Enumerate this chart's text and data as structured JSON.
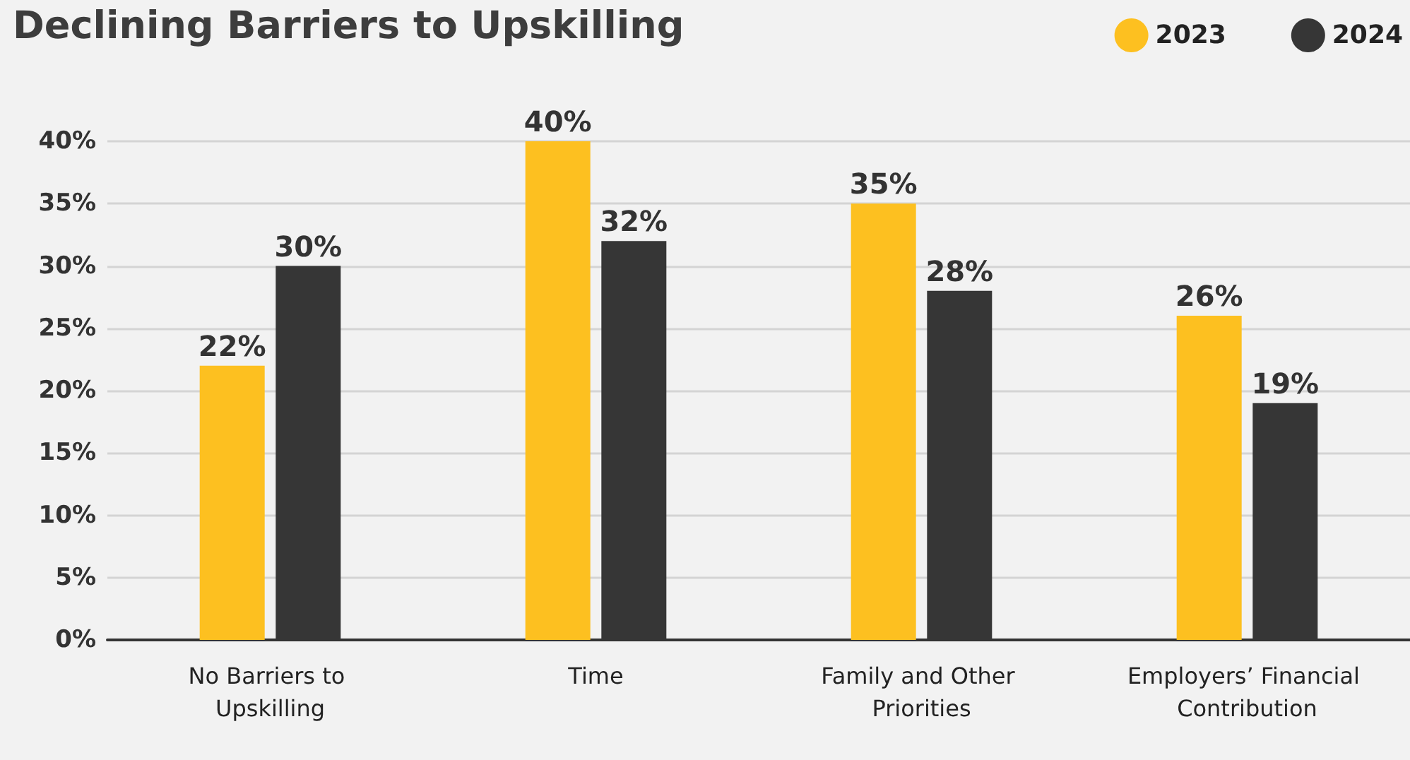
{
  "chart_data": {
    "type": "bar",
    "title": "Declining Barriers to Upskilling",
    "categories": [
      "No Barriers to Upskilling",
      "Time",
      "Family and Other Priorities",
      "Employers’ Financial Contribution"
    ],
    "series": [
      {
        "name": "2023",
        "color": "#fdc020",
        "values": [
          22,
          40,
          35,
          26
        ],
        "value_labels": [
          "22%",
          "40%",
          "35%",
          "26%"
        ]
      },
      {
        "name": "2024",
        "color": "#363636",
        "values": [
          30,
          32,
          28,
          19
        ],
        "value_labels": [
          "30%",
          "32%",
          "28%",
          "19%"
        ]
      }
    ],
    "ylim": [
      0,
      40
    ],
    "yticks": [
      {
        "value": 0,
        "label": "0%"
      },
      {
        "value": 5,
        "label": "5%"
      },
      {
        "value": 10,
        "label": "10%"
      },
      {
        "value": 15,
        "label": "15%"
      },
      {
        "value": 20,
        "label": "20%"
      },
      {
        "value": 25,
        "label": "25%"
      },
      {
        "value": 30,
        "label": "30%"
      },
      {
        "value": 35,
        "label": "35%"
      },
      {
        "value": 40,
        "label": "40%"
      }
    ],
    "grid": "y",
    "legend": "top right"
  }
}
